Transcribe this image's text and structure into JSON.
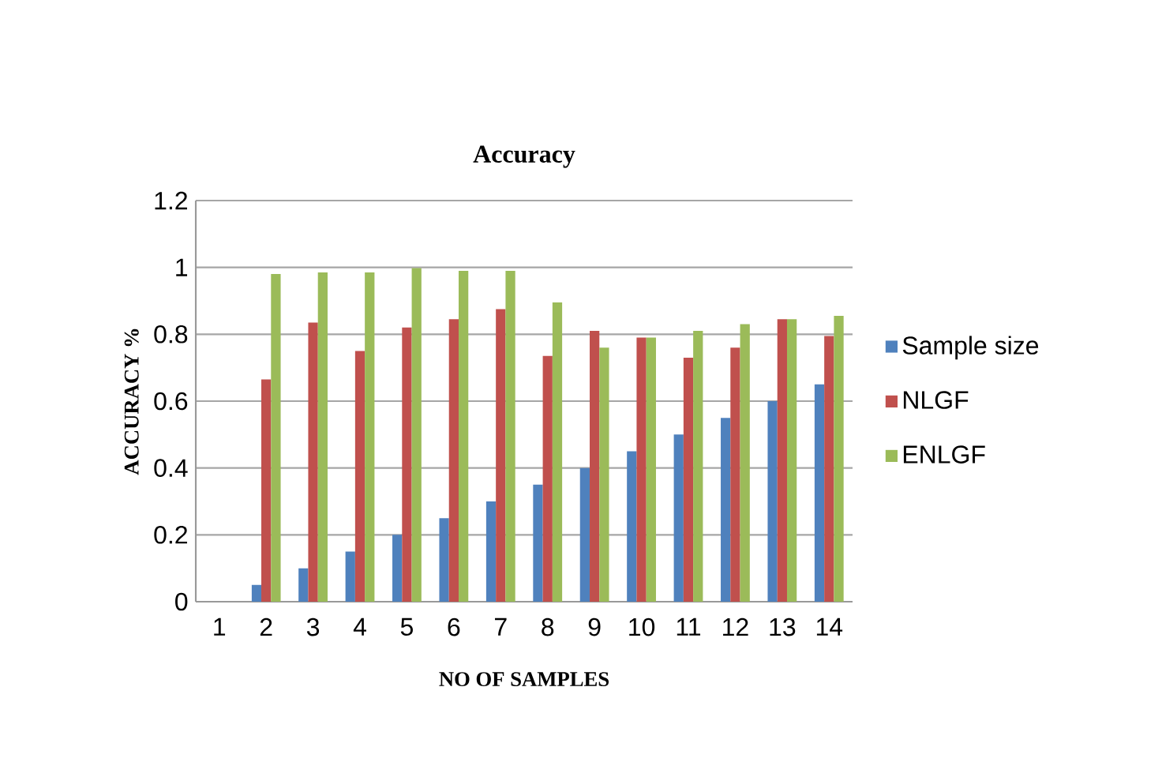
{
  "chart_data": {
    "type": "bar",
    "title": "Accuracy",
    "xlabel": "NO OF SAMPLES",
    "ylabel": "ACCURACY %",
    "categories": [
      "1",
      "2",
      "3",
      "4",
      "5",
      "6",
      "7",
      "8",
      "9",
      "10",
      "11",
      "12",
      "13",
      "14"
    ],
    "series": [
      {
        "name": "Sample size",
        "color": "#4f81bd",
        "values": [
          null,
          0.05,
          0.1,
          0.15,
          0.2,
          0.25,
          0.3,
          0.35,
          0.4,
          0.45,
          0.5,
          0.55,
          0.6,
          0.65
        ]
      },
      {
        "name": "NLGF",
        "color": "#c0504d",
        "values": [
          null,
          0.665,
          0.835,
          0.75,
          0.82,
          0.845,
          0.875,
          0.735,
          0.81,
          0.79,
          0.73,
          0.76,
          0.845,
          0.795
        ]
      },
      {
        "name": "ENLGF",
        "color": "#9bbb59",
        "values": [
          null,
          0.98,
          0.985,
          0.985,
          0.998,
          0.99,
          0.99,
          0.895,
          0.76,
          0.79,
          0.81,
          0.83,
          0.845,
          0.855
        ]
      }
    ],
    "ylim": [
      0,
      1.2
    ],
    "yticks": [
      0,
      0.2,
      0.4,
      0.6,
      0.8,
      1,
      1.2
    ],
    "grid": "y",
    "legend": "right"
  }
}
